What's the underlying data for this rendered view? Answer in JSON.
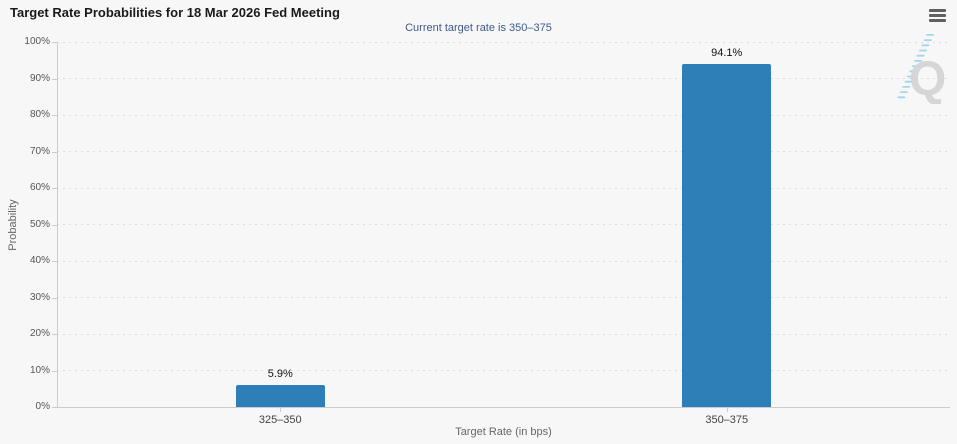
{
  "header": {
    "title": "Target Rate Probabilities for 18 Mar 2026 Fed Meeting",
    "menu_icon": "hamburger-icon"
  },
  "watermark_letter": "Q",
  "colors": {
    "bg": "#f7f7f7",
    "title": "#1a1a1a",
    "subtitle": "#3e5a8c",
    "axis": "#cccccc",
    "grid": "#dddddd",
    "tick_label": "#555555",
    "category_label": "#444444",
    "axis_title": "#666666",
    "data_label": "#111111",
    "bar": "#2e7eb8",
    "menu_icon": "#606060",
    "watermark_q": "#d6d6d6",
    "watermark_dash": "#a3d6ee"
  },
  "chart_data": {
    "type": "bar",
    "title": "Target Rate Probabilities for 18 Mar 2026 Fed Meeting",
    "subtitle": "Current target rate is 350–375",
    "categories": [
      "325–350",
      "350–375"
    ],
    "values": [
      5.9,
      94.1
    ],
    "data_labels": [
      "5.9%",
      "94.1%"
    ],
    "xlabel": "Target Rate (in bps)",
    "ylabel": "Probability",
    "ylim": [
      0,
      100
    ],
    "ytick_step": 10,
    "ytick_labels": [
      "0%",
      "10%",
      "20%",
      "30%",
      "40%",
      "50%",
      "60%",
      "70%",
      "80%",
      "90%",
      "100%"
    ],
    "grid": "dotted-horizontal",
    "legend": "none"
  }
}
